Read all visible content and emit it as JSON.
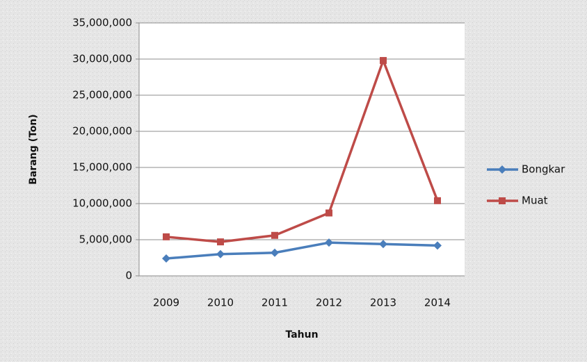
{
  "chart_data": {
    "type": "line",
    "x_label": "Tahun",
    "y_label": "Barang (Ton)",
    "categories": [
      "2009",
      "2010",
      "2011",
      "2012",
      "2013",
      "2014"
    ],
    "series": [
      {
        "name": "Bongkar",
        "color": "#4a7ebb",
        "marker": "diamond",
        "values": [
          2400000,
          3000000,
          3200000,
          4600000,
          4400000,
          4200000
        ]
      },
      {
        "name": "Muat",
        "color": "#be4b48",
        "marker": "square",
        "values": [
          5400000,
          4700000,
          5600000,
          8700000,
          29800000,
          10400000
        ]
      }
    ],
    "ylim": [
      0,
      35000000
    ],
    "yticks": [
      0,
      {
        "value": 5000000,
        "label": "5,000,000"
      },
      {
        "value": 10000000,
        "label": "10,000,000"
      },
      {
        "value": 15000000,
        "label": "15,000,000"
      },
      {
        "value": 20000000,
        "label": "20,000,000"
      },
      {
        "value": 25000000,
        "label": "25,000,000"
      },
      {
        "value": 30000000,
        "label": "30,000,000"
      },
      {
        "value": 35000000,
        "label": "35,000,000"
      }
    ],
    "grid": true,
    "legend": "right"
  }
}
